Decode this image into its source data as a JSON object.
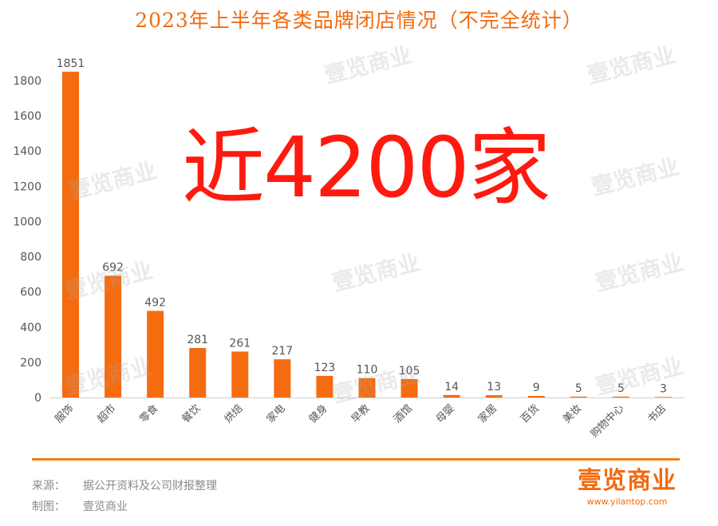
{
  "chart_data": {
    "type": "bar",
    "title": "2023年上半年各类品牌闭店情况（不完全统计）",
    "categories": [
      "服饰",
      "超市",
      "零食",
      "餐饮",
      "烘焙",
      "家电",
      "健身",
      "早教",
      "酒馆",
      "母婴",
      "家居",
      "百货",
      "美妆",
      "购物中心",
      "书店"
    ],
    "values": [
      1851,
      692,
      492,
      281,
      261,
      217,
      123,
      110,
      105,
      14,
      13,
      9,
      5,
      5,
      3
    ],
    "yticks": [
      0,
      200,
      400,
      600,
      800,
      1000,
      1200,
      1400,
      1600,
      1800
    ],
    "ylim": [
      0,
      1850
    ],
    "bar_color": "#f56b10",
    "grid": false,
    "annotation": "近4200家"
  },
  "footer": {
    "source_key": "来源：",
    "source_value": "据公开资料及公司财报整理",
    "maker_key": "制图：",
    "maker_value": "壹览商业"
  },
  "brand": {
    "logo": "壹览商业",
    "url": "www.yilantop.com"
  },
  "watermark_text": "壹览商业",
  "colors": {
    "accent": "#f26a10",
    "overlay_text": "#ff1a0f"
  }
}
